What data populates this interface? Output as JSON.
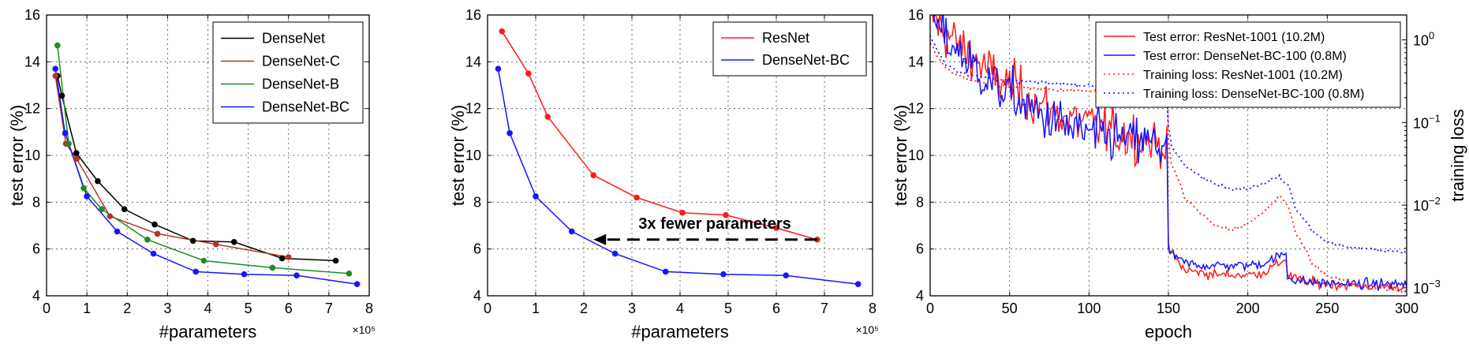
{
  "chart_data": [
    {
      "type": "line",
      "xlabel": "#parameters",
      "x_exponent_label": "×10⁵",
      "ylabel": "test error (%)",
      "xlim": [
        0,
        8
      ],
      "ylim": [
        4,
        16
      ],
      "xticks": [
        "0",
        "1",
        "2",
        "3",
        "4",
        "5",
        "6",
        "7",
        "8"
      ],
      "yticks": [
        "4",
        "6",
        "8",
        "10",
        "12",
        "14",
        "16"
      ],
      "grid": true,
      "legend_position": "top-right",
      "series": [
        {
          "name": "DenseNet",
          "color": "#000000",
          "x": [
            0.27,
            0.38,
            0.74,
            1.27,
            1.93,
            2.68,
            3.63,
            4.65,
            5.84,
            7.17
          ],
          "y": [
            13.4,
            12.55,
            10.1,
            8.9,
            7.7,
            7.05,
            6.35,
            6.3,
            5.6,
            5.5
          ]
        },
        {
          "name": "DenseNet-C",
          "color": "#b5342a",
          "x": [
            0.22,
            0.48,
            0.75,
            1.57,
            2.75,
            4.2,
            6.0
          ],
          "y": [
            13.4,
            10.5,
            9.85,
            7.4,
            6.65,
            6.2,
            5.65
          ]
        },
        {
          "name": "DenseNet-B",
          "color": "#1e8c1e",
          "x": [
            0.27,
            0.55,
            0.92,
            1.37,
            2.5,
            3.9,
            5.6,
            7.5
          ],
          "y": [
            14.7,
            10.5,
            8.6,
            7.7,
            6.4,
            5.5,
            5.2,
            4.95
          ]
        },
        {
          "name": "DenseNet-BC",
          "color": "#1515ff",
          "x": [
            0.22,
            0.46,
            1.0,
            1.75,
            2.65,
            3.7,
            4.9,
            6.2,
            7.7
          ],
          "y": [
            13.7,
            10.95,
            8.25,
            6.75,
            5.8,
            5.03,
            4.92,
            4.87,
            4.5
          ]
        }
      ]
    },
    {
      "type": "line",
      "xlabel": "#parameters",
      "x_exponent_label": "×10⁵",
      "ylabel": "test error (%)",
      "xlim": [
        0,
        8
      ],
      "ylim": [
        4,
        16
      ],
      "xticks": [
        "0",
        "1",
        "2",
        "3",
        "4",
        "5",
        "6",
        "7",
        "8"
      ],
      "yticks": [
        "4",
        "6",
        "8",
        "10",
        "12",
        "14",
        "16"
      ],
      "grid": true,
      "legend_position": "top-right",
      "annotation": {
        "text": "3x fewer parameters",
        "arrow_from": [
          6.85,
          6.4
        ],
        "arrow_to": [
          2.2,
          6.4
        ]
      },
      "series": [
        {
          "name": "ResNet",
          "color": "#ff1a1a",
          "x": [
            0.3,
            0.85,
            1.25,
            2.2,
            3.1,
            4.05,
            4.95,
            6.0,
            6.85
          ],
          "y": [
            15.3,
            13.5,
            11.65,
            9.15,
            8.2,
            7.55,
            7.45,
            6.9,
            6.4
          ]
        },
        {
          "name": "DenseNet-BC",
          "color": "#1515ff",
          "x": [
            0.22,
            0.46,
            1.0,
            1.75,
            2.65,
            3.7,
            4.9,
            6.2,
            7.7
          ],
          "y": [
            13.7,
            10.95,
            8.25,
            6.75,
            5.8,
            5.03,
            4.92,
            4.87,
            4.5
          ]
        }
      ]
    },
    {
      "type": "line",
      "xlabel": "epoch",
      "ylabel": "test error (%)",
      "y2label": "training loss",
      "xlim": [
        0,
        300
      ],
      "ylim": [
        4,
        16
      ],
      "y2lim": [
        0.0008,
        2
      ],
      "y2scale": "log",
      "xticks": [
        "0",
        "50",
        "100",
        "150",
        "200",
        "250",
        "300"
      ],
      "yticks": [
        "4",
        "6",
        "8",
        "10",
        "12",
        "14",
        "16"
      ],
      "y2ticks": [
        {
          "value": 1,
          "base": "10",
          "exp": "0"
        },
        {
          "value": 0.1,
          "base": "10",
          "exp": "−1"
        },
        {
          "value": 0.01,
          "base": "10",
          "exp": "−2"
        },
        {
          "value": 0.001,
          "base": "10",
          "exp": "−3"
        }
      ],
      "grid": true,
      "legend_position": "top-right",
      "series": [
        {
          "name": "Test error: ResNet-1001 (10.2M)",
          "color": "#ff1a1a",
          "style": "solid",
          "axis": "left",
          "x": [
            0,
            10,
            20,
            30,
            40,
            50,
            60,
            70,
            80,
            90,
            100,
            110,
            120,
            130,
            140,
            149,
            150,
            160,
            170,
            180,
            190,
            200,
            210,
            220,
            224,
            225,
            235,
            250,
            270,
            300
          ],
          "y": [
            16,
            15.2,
            14.6,
            14.0,
            13.4,
            13.0,
            12.6,
            12.1,
            11.8,
            11.5,
            11.3,
            11.1,
            10.9,
            10.8,
            10.6,
            10.5,
            6.0,
            5.1,
            5.0,
            4.9,
            4.9,
            4.9,
            5.0,
            5.4,
            5.6,
            4.9,
            4.6,
            4.5,
            4.4,
            4.4
          ]
        },
        {
          "name": "Test error: DenseNet-BC-100 (0.8M)",
          "color": "#1515ff",
          "style": "solid",
          "axis": "left",
          "x": [
            0,
            10,
            20,
            30,
            40,
            50,
            60,
            70,
            80,
            90,
            100,
            110,
            120,
            130,
            140,
            149,
            150,
            160,
            170,
            180,
            190,
            200,
            210,
            220,
            224,
            225,
            235,
            250,
            270,
            300
          ],
          "y": [
            16,
            15.0,
            14.3,
            13.6,
            13.0,
            12.6,
            12.1,
            11.7,
            11.4,
            11.1,
            10.9,
            10.8,
            10.7,
            10.6,
            10.5,
            10.4,
            5.9,
            5.4,
            5.3,
            5.3,
            5.3,
            5.3,
            5.4,
            5.7,
            5.8,
            4.8,
            4.6,
            4.55,
            4.5,
            4.5
          ]
        },
        {
          "name": "Training loss: ResNet-1001 (10.2M)",
          "color": "#ff1a1a",
          "style": "dotted",
          "axis": "right",
          "x": [
            0,
            5,
            10,
            20,
            30,
            50,
            75,
            100,
            125,
            149,
            150,
            152,
            160,
            170,
            180,
            190,
            200,
            210,
            215,
            220,
            225,
            230,
            240,
            250,
            270,
            290,
            300
          ],
          "y": [
            0.9,
            0.6,
            0.45,
            0.35,
            0.31,
            0.27,
            0.25,
            0.24,
            0.23,
            0.22,
            0.06,
            0.03,
            0.012,
            0.008,
            0.0055,
            0.005,
            0.006,
            0.008,
            0.01,
            0.013,
            0.01,
            0.0045,
            0.002,
            0.0014,
            0.0011,
            0.00095,
            0.0009
          ]
        },
        {
          "name": "Training loss: DenseNet-BC-100 (0.8M)",
          "color": "#1515ff",
          "style": "dotted",
          "axis": "right",
          "x": [
            0,
            5,
            10,
            20,
            30,
            50,
            75,
            100,
            125,
            149,
            150,
            152,
            160,
            170,
            180,
            190,
            200,
            210,
            215,
            220,
            225,
            230,
            240,
            250,
            270,
            290,
            300
          ],
          "y": [
            1.1,
            0.7,
            0.5,
            0.4,
            0.36,
            0.32,
            0.3,
            0.28,
            0.27,
            0.26,
            0.09,
            0.05,
            0.03,
            0.022,
            0.018,
            0.016,
            0.016,
            0.018,
            0.02,
            0.022,
            0.018,
            0.009,
            0.005,
            0.0035,
            0.003,
            0.0028,
            0.0027
          ]
        }
      ]
    }
  ]
}
